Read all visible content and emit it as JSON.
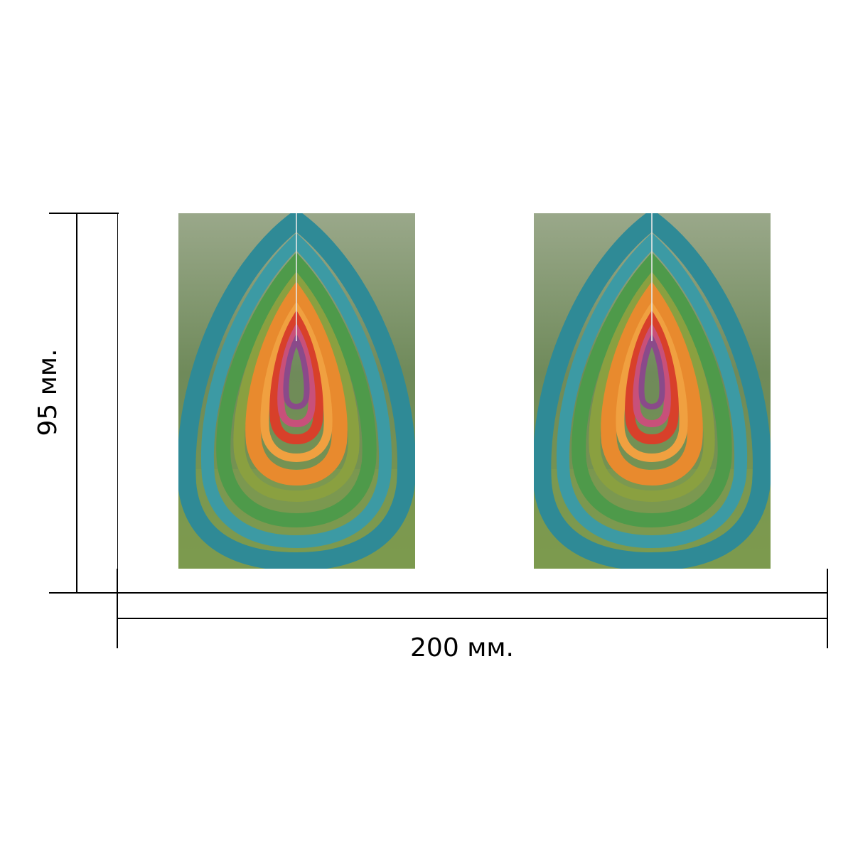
{
  "dimensions": {
    "height_label": "95 мм.",
    "width_label": "200 мм."
  },
  "photos": [
    {
      "subject": "nested-fabric-teardrop-rings"
    },
    {
      "subject": "nested-fabric-teardrop-rings"
    }
  ],
  "colors": {
    "background": "#ffffff",
    "lines": "#000000",
    "ring_teal": "#2f8a96",
    "ring_green": "#4e9a4a",
    "ring_olive": "#8aa040",
    "ring_orange": "#e88a2e",
    "ring_red": "#d8402a",
    "ring_pink": "#c8507a",
    "ring_purple": "#8a4a8a",
    "foliage": "#7e9a6a"
  }
}
